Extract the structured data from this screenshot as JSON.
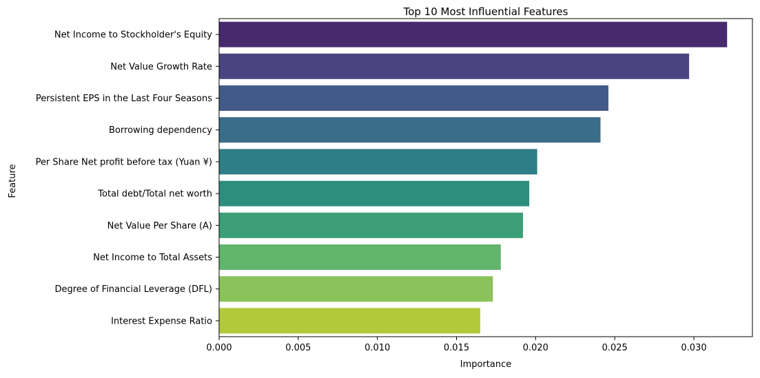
{
  "chart_data": {
    "type": "bar",
    "orientation": "horizontal",
    "title": "Top 10 Most Influential Features",
    "xlabel": "Importance",
    "ylabel": "Feature",
    "xlim": [
      0,
      0.0337
    ],
    "xticks": [
      "0.000",
      "0.005",
      "0.010",
      "0.015",
      "0.020",
      "0.025",
      "0.030"
    ],
    "grid": false,
    "categories": [
      " Net Income to Stockholder's Equity",
      " Net Value Growth Rate",
      " Persistent EPS in the Last Four Seasons",
      " Borrowing dependency",
      " Per Share Net profit before tax (Yuan ¥)",
      " Total debt/Total net worth",
      " Net Value Per Share (A)",
      " Net Income to Total Assets",
      " Degree of Financial Leverage (DFL)",
      " Interest Expense Ratio"
    ],
    "values": [
      0.0321,
      0.0297,
      0.0246,
      0.0241,
      0.0201,
      0.0196,
      0.0192,
      0.0178,
      0.0173,
      0.0165
    ],
    "colors": [
      "#472a6d",
      "#4a4581",
      "#415a88",
      "#3a6d88",
      "#2f7d87",
      "#2e8e7e",
      "#3c9f77",
      "#61b56d",
      "#8ac35a",
      "#b2c939"
    ]
  }
}
